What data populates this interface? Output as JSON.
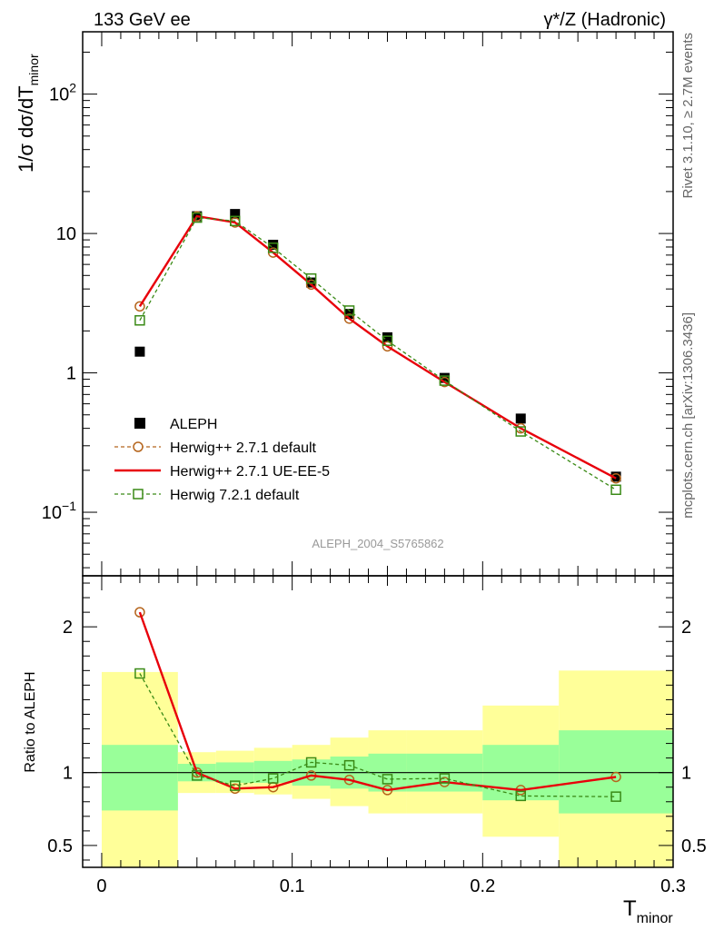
{
  "header": {
    "left": "133 GeV ee",
    "right": "γ*/Z (Hadronic)"
  },
  "side_text": {
    "rivet": "Rivet 3.1.10, ≥ 2.7M events",
    "mcplots": "mcplots.cern.ch [arXiv:1306.3436]"
  },
  "watermark": "ALEPH_2004_S5765862",
  "colors": {
    "data": "#000000",
    "herwig_271_default": "#b5651d",
    "herwig_ue": "#e8000b",
    "herwig_721": "#3a8a16",
    "band_inner": "#99ff99",
    "band_outer": "#ffff99"
  },
  "chart_data": [
    {
      "type": "line",
      "panel": "main",
      "yscale": "log",
      "ylabel_main": "1/σ  dσ/dT",
      "ylabel_sub": "minor",
      "xlim": [
        -0.01,
        0.3
      ],
      "ylim": [
        0.035,
        280
      ],
      "yticks": [
        {
          "v": 0.1,
          "base": "10",
          "exp": "−1"
        },
        {
          "v": 1,
          "base": "1",
          "exp": ""
        },
        {
          "v": 10,
          "base": "10",
          "exp": ""
        },
        {
          "v": 100,
          "base": "10",
          "exp": "2"
        }
      ],
      "legend_position": "lower-left",
      "x": [
        0.02,
        0.05,
        0.07,
        0.09,
        0.11,
        0.13,
        0.15,
        0.18,
        0.22,
        0.27
      ],
      "series": [
        {
          "name": "ALEPH",
          "key": "data",
          "marker": "square",
          "values": [
            1.42,
            13.3,
            13.8,
            8.3,
            4.45,
            2.65,
            1.8,
            0.92,
            0.47,
            0.18
          ]
        },
        {
          "name": "Herwig++ 2.7.1 default",
          "key": "herwig_271_default",
          "marker": "circle",
          "dash": true,
          "values": [
            3.0,
            13.3,
            12.0,
            7.3,
            4.3,
            2.45,
            1.55,
            0.86,
            0.4,
            0.175
          ]
        },
        {
          "name": "Herwig++ 2.7.1 UE-EE-5",
          "key": "herwig_ue",
          "marker": "none",
          "dash": false,
          "values": [
            3.0,
            13.3,
            12.0,
            7.3,
            4.3,
            2.45,
            1.55,
            0.86,
            0.4,
            0.175
          ]
        },
        {
          "name": "Herwig 7.2.1 default",
          "key": "herwig_721",
          "marker": "square-open",
          "dash": true,
          "values": [
            2.38,
            13.0,
            12.3,
            7.9,
            4.75,
            2.8,
            1.7,
            0.88,
            0.38,
            0.145
          ]
        }
      ]
    },
    {
      "type": "line",
      "panel": "ratio",
      "ylabel": "Ratio to ALEPH",
      "xlabel_main": "T",
      "xlabel_sub": "minor",
      "xlim": [
        -0.01,
        0.3
      ],
      "ylim": [
        0.35,
        2.35
      ],
      "xticks": [
        {
          "v": 0,
          "label": "0"
        },
        {
          "v": 0.1,
          "label": "0.1"
        },
        {
          "v": 0.2,
          "label": "0.2"
        },
        {
          "v": 0.3,
          "label": "0.3"
        }
      ],
      "yticks": [
        {
          "v": 0.5,
          "label": "0.5"
        },
        {
          "v": 1,
          "label": "1"
        },
        {
          "v": 2,
          "label": "2"
        }
      ],
      "bands": [
        {
          "x0": 0.0,
          "x1": 0.04,
          "inner": [
            0.74,
            1.19
          ],
          "outer": [
            0.35,
            1.69
          ]
        },
        {
          "x0": 0.04,
          "x1": 0.06,
          "inner": [
            0.94,
            1.06
          ],
          "outer": [
            0.86,
            1.14
          ]
        },
        {
          "x0": 0.06,
          "x1": 0.08,
          "inner": [
            0.93,
            1.07
          ],
          "outer": [
            0.86,
            1.15
          ]
        },
        {
          "x0": 0.08,
          "x1": 0.1,
          "inner": [
            0.93,
            1.08
          ],
          "outer": [
            0.85,
            1.17
          ]
        },
        {
          "x0": 0.1,
          "x1": 0.12,
          "inner": [
            0.91,
            1.09
          ],
          "outer": [
            0.82,
            1.19
          ]
        },
        {
          "x0": 0.12,
          "x1": 0.14,
          "inner": [
            0.89,
            1.11
          ],
          "outer": [
            0.77,
            1.24
          ]
        },
        {
          "x0": 0.14,
          "x1": 0.16,
          "inner": [
            0.87,
            1.13
          ],
          "outer": [
            0.72,
            1.29
          ]
        },
        {
          "x0": 0.16,
          "x1": 0.2,
          "inner": [
            0.87,
            1.13
          ],
          "outer": [
            0.72,
            1.29
          ]
        },
        {
          "x0": 0.2,
          "x1": 0.24,
          "inner": [
            0.81,
            1.19
          ],
          "outer": [
            0.56,
            1.46
          ]
        },
        {
          "x0": 0.24,
          "x1": 0.3,
          "inner": [
            0.72,
            1.29
          ],
          "outer": [
            0.35,
            1.7
          ]
        }
      ],
      "x": [
        0.02,
        0.05,
        0.07,
        0.09,
        0.11,
        0.13,
        0.15,
        0.18,
        0.22,
        0.27
      ],
      "series": [
        {
          "name": "Herwig++ 2.7.1 default",
          "key": "herwig_271_default",
          "marker": "circle",
          "dash": true,
          "values": [
            2.1,
            1.0,
            0.89,
            0.9,
            0.98,
            0.95,
            0.88,
            0.935,
            0.88,
            0.97
          ]
        },
        {
          "name": "Herwig++ 2.7.1 UE-EE-5",
          "key": "herwig_ue",
          "marker": "none",
          "dash": false,
          "values": [
            2.1,
            1.0,
            0.89,
            0.9,
            0.98,
            0.95,
            0.88,
            0.935,
            0.88,
            0.97
          ]
        },
        {
          "name": "Herwig 7.2.1 default",
          "key": "herwig_721",
          "marker": "square-open",
          "dash": true,
          "values": [
            1.68,
            0.98,
            0.91,
            0.96,
            1.07,
            1.05,
            0.955,
            0.96,
            0.84,
            0.835
          ]
        }
      ]
    }
  ]
}
